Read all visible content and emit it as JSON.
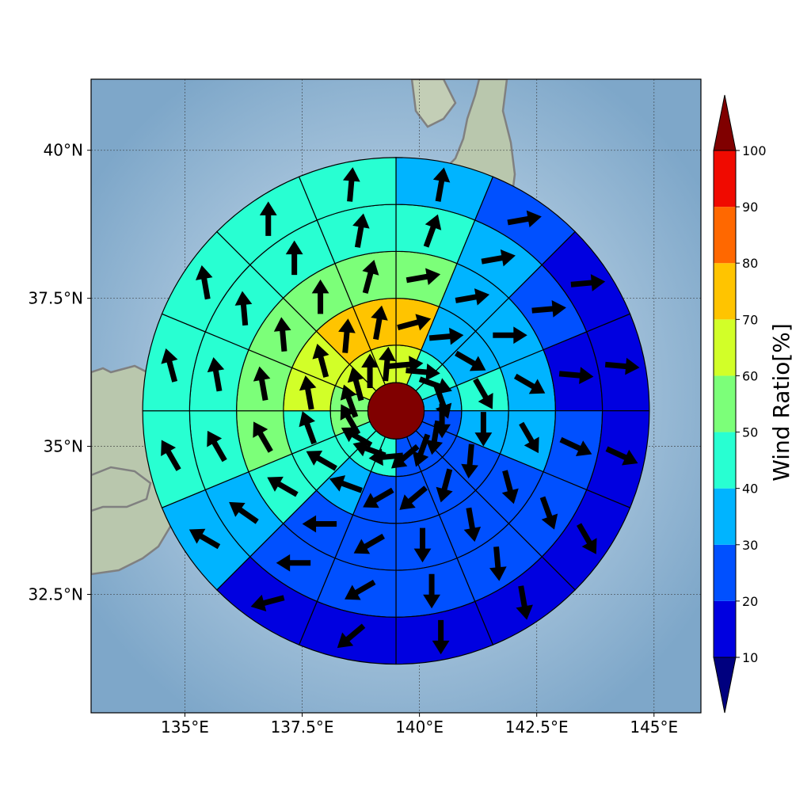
{
  "map": {
    "lon_range": [
      133,
      146
    ],
    "lat_range": [
      30.5,
      41.2
    ],
    "gridlines": true,
    "center": {
      "lon": 139.5,
      "lat": 35.6
    },
    "x_ticks": [
      {
        "value": 135,
        "label": "135°E"
      },
      {
        "value": 137.5,
        "label": "137.5°E"
      },
      {
        "value": 140,
        "label": "140°E"
      },
      {
        "value": 142.5,
        "label": "142.5°E"
      },
      {
        "value": 145,
        "label": "145°E"
      }
    ],
    "y_ticks": [
      {
        "value": 40,
        "label": "40°N"
      },
      {
        "value": 37.5,
        "label": "37.5°N"
      },
      {
        "value": 35,
        "label": "35°N"
      },
      {
        "value": 32.5,
        "label": "32.5°N"
      }
    ]
  },
  "colorbar": {
    "label": "Wind Ratio[%]",
    "levels": [
      10,
      20,
      30,
      40,
      50,
      60,
      70,
      80,
      90,
      100
    ],
    "colors": [
      "#0000e0",
      "#0050ff",
      "#00b4ff",
      "#28ffd2",
      "#7cff79",
      "#d2ff28",
      "#ffc400",
      "#ff6800",
      "#f00a00"
    ],
    "under_color": "#00007f",
    "over_color": "#800000",
    "tick_labels": [
      "10",
      "20",
      "30",
      "40",
      "50",
      "60",
      "70",
      "80",
      "90",
      "100"
    ]
  },
  "chart_data": {
    "type": "polar_sector_map",
    "title": "",
    "center_value": 100,
    "sector_count": 16,
    "sector_start_bearing_deg": 0,
    "sector_direction": "clockwise",
    "ring_outer_radius_deg": [
      1.4,
      2.4,
      3.4,
      4.4,
      5.4
    ],
    "rings": [
      {
        "values": [
          65,
          45,
          45,
          35,
          25,
          25,
          25,
          25,
          45,
          45,
          45,
          55,
          55,
          65,
          65,
          65
        ],
        "arrow_bearing_deg": [
          85,
          95,
          110,
          160,
          180,
          190,
          200,
          230,
          265,
          290,
          300,
          330,
          340,
          345,
          0,
          5
        ]
      },
      {
        "values": [
          75,
          35,
          35,
          45,
          35,
          25,
          25,
          25,
          25,
          35,
          45,
          45,
          65,
          65,
          75,
          75
        ],
        "arrow_bearing_deg": [
          75,
          85,
          120,
          150,
          180,
          185,
          195,
          230,
          240,
          290,
          300,
          340,
          350,
          345,
          5,
          10
        ]
      },
      {
        "values": [
          55,
          35,
          35,
          35,
          35,
          25,
          25,
          25,
          25,
          25,
          45,
          55,
          55,
          55,
          55,
          55
        ],
        "arrow_bearing_deg": [
          80,
          80,
          90,
          120,
          150,
          165,
          170,
          180,
          240,
          270,
          300,
          330,
          350,
          355,
          0,
          15
        ]
      },
      {
        "values": [
          45,
          35,
          25,
          15,
          25,
          25,
          25,
          25,
          25,
          25,
          35,
          45,
          45,
          45,
          45,
          45
        ],
        "arrow_bearing_deg": [
          20,
          80,
          85,
          95,
          115,
          160,
          175,
          180,
          240,
          270,
          305,
          330,
          350,
          355,
          0,
          10
        ]
      },
      {
        "values": [
          35,
          25,
          15,
          15,
          15,
          15,
          15,
          15,
          15,
          15,
          35,
          45,
          45,
          45,
          45,
          45
        ],
        "arrow_bearing_deg": [
          10,
          80,
          85,
          95,
          115,
          150,
          170,
          180,
          230,
          255,
          300,
          330,
          345,
          350,
          0,
          5
        ]
      }
    ]
  }
}
